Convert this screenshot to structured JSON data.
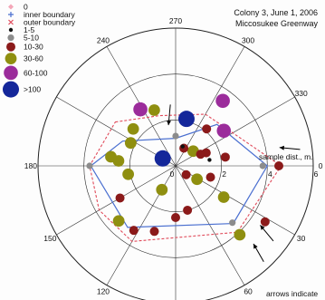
{
  "chart_data": {
    "type": "scatter",
    "projection": "polar",
    "title_lines": [
      "Colony 3, June 1, 2006",
      "Miccosukee Greenway"
    ],
    "radial_axis_label": "sample dist., m.",
    "radial_range": [
      0,
      6
    ],
    "radial_ticks": [
      "0",
      "2",
      "4",
      "6"
    ],
    "angular_ticks": [
      {
        "deg": 0,
        "label": "0"
      },
      {
        "deg": 30,
        "label": "30"
      },
      {
        "deg": 60,
        "label": "60"
      },
      {
        "deg": 120,
        "label": "120"
      },
      {
        "deg": 150,
        "label": "150"
      },
      {
        "deg": 180,
        "label": "180"
      },
      {
        "deg": 240,
        "label": "240"
      },
      {
        "deg": 270,
        "label": "270"
      },
      {
        "deg": 300,
        "label": "300"
      },
      {
        "deg": 330,
        "label": "330"
      }
    ],
    "grid": true,
    "legend": [
      {
        "label": "0",
        "symbol": "diamond",
        "color": "#f4a6b8"
      },
      {
        "label": "inner boundary",
        "symbol": "plus",
        "color": "#4a6fd0"
      },
      {
        "label": "outer boundary",
        "symbol": "x",
        "color": "#e04a5a"
      },
      {
        "label": "1-5",
        "symbol": "dot",
        "color": "#111111",
        "size": 1
      },
      {
        "label": "5-10",
        "symbol": "dot",
        "color": "#8c8c8c",
        "size": 2
      },
      {
        "label": "10-30",
        "symbol": "dot",
        "color": "#8b1a1a",
        "size": 3
      },
      {
        "label": "30-60",
        "symbol": "dot",
        "color": "#8f8f10",
        "size": 4
      },
      {
        "label": "60-100",
        "symbol": "dot",
        "color": "#9b2c9b",
        "size": 5
      },
      {
        "label": ">100",
        "symbol": "dot",
        "color": "#14279a",
        "size": 6
      }
    ],
    "inner_boundary": [
      [
        2.55,
        205
      ],
      [
        1.2,
        270
      ],
      [
        2.55,
        315
      ],
      [
        4.0,
        0
      ],
      [
        3.55,
        45
      ],
      [
        3.4,
        128
      ],
      [
        3.7,
        180
      ]
    ],
    "outer_boundary": [
      [
        3.25,
        216
      ],
      [
        2.3,
        252
      ],
      [
        2.6,
        300
      ],
      [
        4.6,
        0
      ],
      [
        3.95,
        47
      ],
      [
        3.8,
        120
      ],
      [
        3.85,
        150
      ],
      [
        3.75,
        180
      ]
    ],
    "points": [
      {
        "r": 2.1,
        "theta": 283,
        "cat": ">100"
      },
      {
        "r": 0.65,
        "theta": 210,
        "cat": ">100"
      },
      {
        "r": 3.5,
        "theta": 306,
        "cat": "60-100"
      },
      {
        "r": 2.9,
        "theta": 238,
        "cat": "60-100"
      },
      {
        "r": 2.6,
        "theta": 324,
        "cat": "60-100"
      },
      {
        "r": 1.3,
        "theta": 270,
        "cat": "5-10"
      },
      {
        "r": 3.8,
        "theta": 360,
        "cat": "5-10"
      },
      {
        "r": 3.5,
        "theta": 45,
        "cat": "5-10"
      },
      {
        "r": 3.75,
        "theta": 180,
        "cat": "5-10"
      },
      {
        "r": 2.6,
        "theta": 249,
        "cat": "30-60"
      },
      {
        "r": 2.45,
        "theta": 221,
        "cat": "30-60"
      },
      {
        "r": 2.5,
        "theta": 185,
        "cat": "30-60"
      },
      {
        "r": 2.85,
        "theta": 188,
        "cat": "30-60"
      },
      {
        "r": 2.2,
        "theta": 207,
        "cat": "30-60"
      },
      {
        "r": 2.1,
        "theta": 170,
        "cat": "30-60"
      },
      {
        "r": 1.2,
        "theta": 120,
        "cat": "30-60"
      },
      {
        "r": 1.0,
        "theta": 320,
        "cat": "30-60"
      },
      {
        "r": 1.1,
        "theta": 32,
        "cat": "30-60"
      },
      {
        "r": 2.5,
        "theta": 33,
        "cat": "30-60"
      },
      {
        "r": 3.45,
        "theta": 136,
        "cat": "30-60"
      },
      {
        "r": 4.1,
        "theta": 47,
        "cat": "30-60"
      },
      {
        "r": 2.25,
        "theta": 90,
        "cat": "10-30"
      },
      {
        "r": 2.0,
        "theta": 75,
        "cat": "10-30"
      },
      {
        "r": 0.6,
        "theta": 40,
        "cat": "10-30"
      },
      {
        "r": 1.6,
        "theta": 18,
        "cat": "10-30"
      },
      {
        "r": 1.45,
        "theta": 337,
        "cat": "10-30"
      },
      {
        "r": 2.2,
        "theta": 350,
        "cat": "10-30"
      },
      {
        "r": 1.2,
        "theta": 335,
        "cat": "10-30"
      },
      {
        "r": 2.1,
        "theta": 310,
        "cat": "10-30"
      },
      {
        "r": 0.85,
        "theta": 295,
        "cat": "10-30"
      },
      {
        "r": 3.0,
        "theta": 108,
        "cat": "10-30"
      },
      {
        "r": 3.35,
        "theta": 123,
        "cat": "10-30"
      },
      {
        "r": 4.5,
        "theta": 0,
        "cat": "10-30"
      },
      {
        "r": 4.6,
        "theta": 32,
        "cat": "10-30"
      },
      {
        "r": 2.8,
        "theta": 150,
        "cat": "10-30"
      },
      {
        "r": 1.5,
        "theta": 350,
        "cat": "1-5"
      },
      {
        "r": 0.9,
        "theta": 290,
        "cat": "1-5"
      }
    ],
    "arrows": [
      {
        "r": 1.8,
        "theta": 260
      },
      {
        "r": 4.6,
        "theta": 350
      },
      {
        "r": 4.5,
        "theta": 35
      },
      {
        "r": 4.8,
        "theta": 45
      }
    ],
    "footnote": "arrows indicate"
  }
}
